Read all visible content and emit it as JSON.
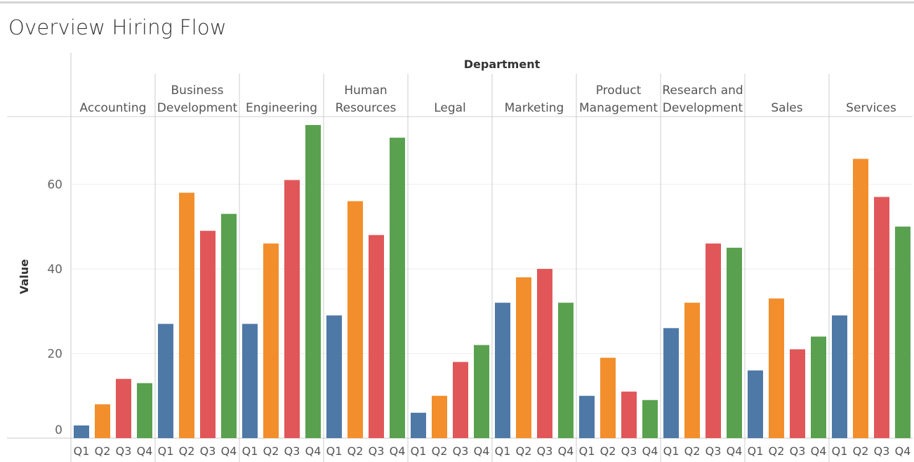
{
  "title": "Overview Hiring Flow",
  "chart_data": {
    "type": "bar",
    "title": "Overview Hiring Flow",
    "column_header": "Department",
    "xlabel": "",
    "ylabel": "Value",
    "ylim": [
      0,
      76
    ],
    "yticks": [
      0,
      20,
      40,
      60
    ],
    "grid": true,
    "quarters": [
      "Q1",
      "Q2",
      "Q3",
      "Q4"
    ],
    "colors": {
      "Q1": "#4e79a7",
      "Q2": "#f28e2b",
      "Q3": "#e15759",
      "Q4": "#59a14f"
    },
    "departments": [
      {
        "name": [
          "Accounting"
        ],
        "values": [
          3,
          8,
          14,
          13
        ]
      },
      {
        "name": [
          "Business",
          "Development"
        ],
        "values": [
          27,
          58,
          49,
          53
        ]
      },
      {
        "name": [
          "Engineering"
        ],
        "values": [
          27,
          46,
          61,
          74
        ]
      },
      {
        "name": [
          "Human",
          "Resources"
        ],
        "values": [
          29,
          56,
          48,
          71
        ]
      },
      {
        "name": [
          "Legal"
        ],
        "values": [
          6,
          10,
          18,
          22
        ]
      },
      {
        "name": [
          "Marketing"
        ],
        "values": [
          32,
          38,
          40,
          32
        ]
      },
      {
        "name": [
          "Product",
          "Management"
        ],
        "values": [
          10,
          19,
          11,
          9
        ]
      },
      {
        "name": [
          "Research and",
          "Development"
        ],
        "values": [
          26,
          32,
          46,
          45
        ]
      },
      {
        "name": [
          "Sales"
        ],
        "values": [
          16,
          33,
          21,
          24
        ]
      },
      {
        "name": [
          "Services"
        ],
        "values": [
          29,
          66,
          57,
          50
        ]
      }
    ]
  }
}
